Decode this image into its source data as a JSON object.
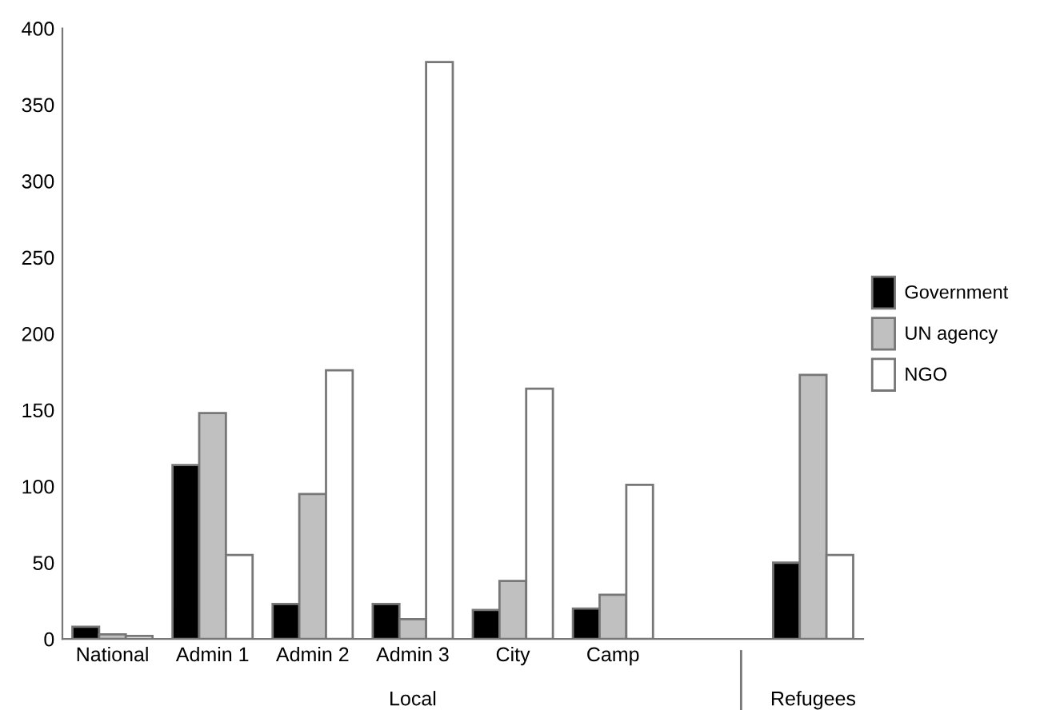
{
  "chart_data": {
    "type": "bar",
    "categories": [
      "National",
      "Admin 1",
      "Admin 2",
      "Admin 3",
      "City",
      "Camp",
      null,
      null
    ],
    "series": [
      {
        "name": "Government",
        "color": "#000000",
        "values": [
          8,
          114,
          23,
          23,
          19,
          20,
          null,
          50
        ]
      },
      {
        "name": "UN agency",
        "color": "#c0c0c0",
        "values": [
          3,
          148,
          95,
          13,
          38,
          29,
          null,
          173
        ]
      },
      {
        "name": "NGO",
        "color": "#ffffff",
        "values": [
          2,
          55,
          176,
          378,
          164,
          101,
          null,
          55
        ]
      }
    ],
    "ylim": [
      0,
      400
    ],
    "yticks": [
      0,
      50,
      100,
      150,
      200,
      250,
      300,
      350,
      400
    ],
    "grid": false,
    "legend": "right",
    "annotations": [
      "Local",
      "Refugees"
    ]
  }
}
